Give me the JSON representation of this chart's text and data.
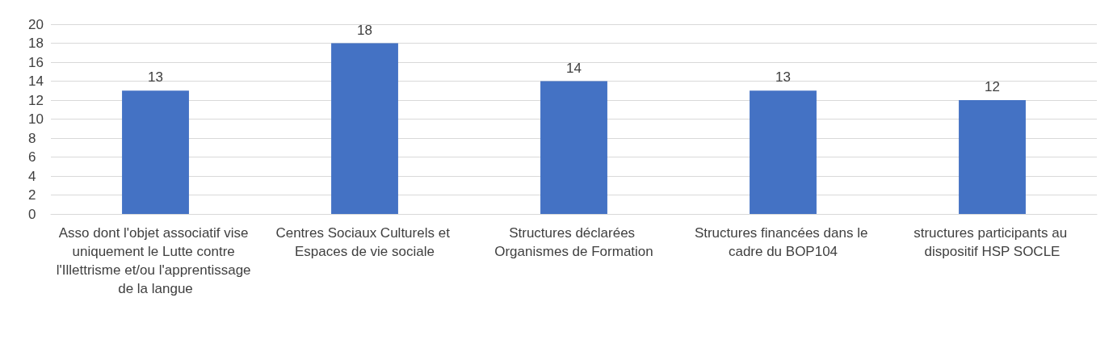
{
  "chart_data": {
    "type": "bar",
    "categories": [
      "Asso dont l'objet associatif vise uniquement le Lutte contre l'Illettrisme et/ou l'apprentissage de la langue",
      "Centres Sociaux Culturels et Espaces de vie sociale",
      "Structures déclarées Organismes de Formation",
      "Structures financées dans le cadre du BOP104",
      "structures participants au dispositif HSP SOCLE"
    ],
    "values": [
      13,
      18,
      14,
      13,
      12
    ],
    "color": "#4472c4",
    "ylim": [
      0,
      20
    ],
    "yticks": [
      0,
      2,
      4,
      6,
      8,
      10,
      12,
      14,
      16,
      18,
      20
    ],
    "grid": "y",
    "data_labels": true
  }
}
